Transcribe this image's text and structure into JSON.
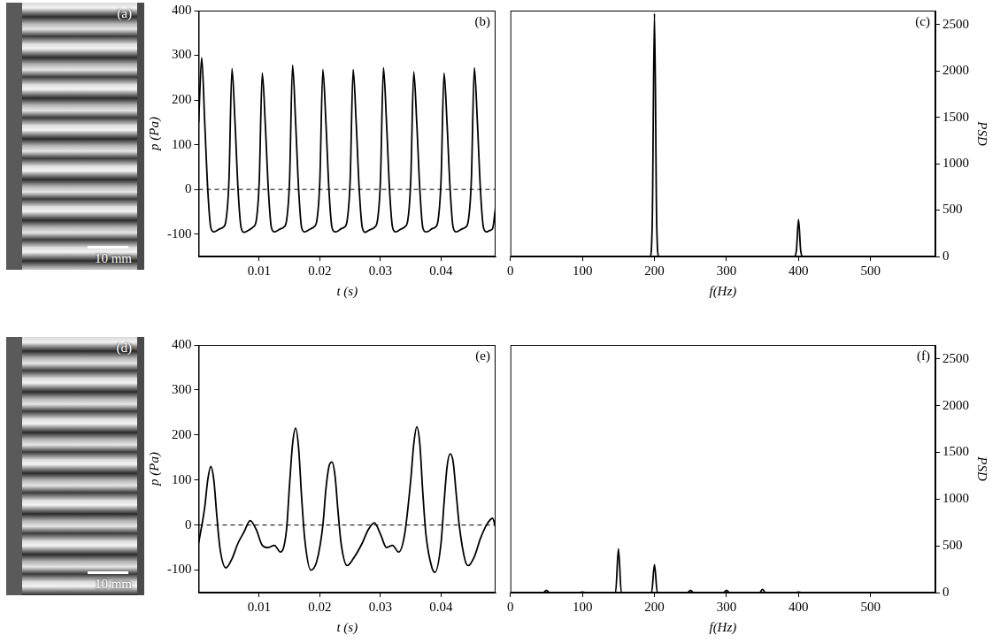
{
  "chart_data": [
    {
      "type": "image",
      "title": "(a)",
      "annotations": [
        "10 mm"
      ]
    },
    {
      "type": "line",
      "title": "(b)",
      "x_label": "t (s)",
      "y_label": "p (Pa)",
      "xlim": [
        0,
        0.049
      ],
      "xticks": [
        0.01,
        0.02,
        0.03,
        0.04
      ],
      "ylim": [
        -150,
        400
      ],
      "yticks": [
        -100,
        0,
        100,
        200,
        300,
        400
      ],
      "grid": false,
      "series": [
        {
          "color": "#000000",
          "line_style": "solid",
          "x": [
            0,
            0.0005,
            0.001,
            0.0015,
            0.002,
            0.0025,
            0.003,
            0.0035,
            0.004,
            0.0045,
            0.005,
            0.0055,
            0.006,
            0.0065,
            0.007,
            0.0075,
            0.008,
            0.0085,
            0.009,
            0.0095,
            0.01,
            0.0105,
            0.011,
            0.0115,
            0.012,
            0.0125,
            0.013,
            0.0135,
            0.014,
            0.0145,
            0.015,
            0.0155,
            0.016,
            0.0165,
            0.017,
            0.0175,
            0.018,
            0.0185,
            0.019,
            0.0195,
            0.02,
            0.0205,
            0.021,
            0.0215,
            0.022,
            0.0225,
            0.023,
            0.0235,
            0.024,
            0.0245,
            0.025,
            0.0255,
            0.026,
            0.0265,
            0.027,
            0.0275,
            0.028,
            0.0285,
            0.029,
            0.0295,
            0.03,
            0.0305,
            0.031,
            0.0315,
            0.032,
            0.0325,
            0.033,
            0.0335,
            0.034,
            0.0345,
            0.035,
            0.0355,
            0.036,
            0.0365,
            0.037,
            0.0375,
            0.038,
            0.0385,
            0.039,
            0.0395,
            0.04,
            0.0405,
            0.041,
            0.0415,
            0.042,
            0.0425,
            0.043,
            0.0435,
            0.044,
            0.0445,
            0.045,
            0.0455,
            0.046,
            0.0465,
            0.047,
            0.0475,
            0.048,
            0.0485,
            0.049
          ],
          "values": [
            150,
            295,
            150,
            0,
            -85,
            -95,
            -92,
            -88,
            -85,
            -70,
            20,
            270,
            150,
            0,
            -85,
            -96,
            -93,
            -89,
            -84,
            -70,
            20,
            260,
            145,
            0,
            -85,
            -95,
            -92,
            -88,
            -85,
            -70,
            20,
            278,
            150,
            0,
            -86,
            -95,
            -92,
            -88,
            -84,
            -70,
            20,
            268,
            150,
            0,
            -85,
            -95,
            -93,
            -88,
            -85,
            -70,
            20,
            268,
            148,
            0,
            -85,
            -96,
            -92,
            -89,
            -85,
            -70,
            20,
            272,
            150,
            0,
            -85,
            -95,
            -92,
            -88,
            -84,
            -70,
            20,
            263,
            147,
            0,
            -86,
            -95,
            -93,
            -88,
            -85,
            -70,
            20,
            260,
            145,
            0,
            -85,
            -95,
            -92,
            -88,
            -85,
            -70,
            20,
            272,
            150,
            0,
            -85,
            -95,
            -92,
            -88,
            -40
          ]
        },
        {
          "color": "#000000",
          "line_style": "dashed",
          "x": [
            0,
            0.049
          ],
          "values": [
            0,
            0
          ]
        }
      ]
    },
    {
      "type": "line",
      "title": "(c)",
      "x_label": "f(Hz)",
      "y_label": "PSD",
      "xlim": [
        0,
        590
      ],
      "xticks": [
        0,
        100,
        200,
        300,
        400,
        500
      ],
      "y2lim": [
        0,
        2650
      ],
      "y2ticks": [
        0,
        500,
        1000,
        1500,
        2000,
        2500
      ],
      "grid": false,
      "series": [
        {
          "color": "#000000",
          "line_style": "solid",
          "axis": "y2",
          "x": [
            0,
            194,
            197,
            200,
            203,
            206,
            394,
            397,
            400,
            403,
            406,
            590
          ],
          "values": [
            0,
            0,
            400,
            2620,
            400,
            0,
            0,
            60,
            400,
            60,
            0,
            0
          ]
        }
      ]
    },
    {
      "type": "image",
      "title": "(d)",
      "annotations": [
        "10 mm"
      ]
    },
    {
      "type": "line",
      "title": "(e)",
      "x_label": "t (s)",
      "y_label": "p (Pa)",
      "xlim": [
        0,
        0.049
      ],
      "xticks": [
        0.01,
        0.02,
        0.03,
        0.04
      ],
      "ylim": [
        -150,
        400
      ],
      "yticks": [
        -100,
        0,
        100,
        200,
        300,
        400
      ],
      "grid": false,
      "series": [
        {
          "color": "#000000",
          "line_style": "solid",
          "x": [
            0,
            0.001,
            0.0015,
            0.002,
            0.0025,
            0.003,
            0.0035,
            0.0045,
            0.0055,
            0.0065,
            0.0075,
            0.0085,
            0.0095,
            0.0105,
            0.0115,
            0.0125,
            0.0135,
            0.0145,
            0.015,
            0.0155,
            0.016,
            0.0165,
            0.017,
            0.0175,
            0.0185,
            0.0195,
            0.0205,
            0.021,
            0.0215,
            0.022,
            0.0225,
            0.023,
            0.0235,
            0.0245,
            0.0255,
            0.027,
            0.028,
            0.029,
            0.03,
            0.031,
            0.032,
            0.033,
            0.034,
            0.035,
            0.0355,
            0.036,
            0.0365,
            0.037,
            0.0375,
            0.0385,
            0.039,
            0.04,
            0.0405,
            0.041,
            0.0415,
            0.042,
            0.0425,
            0.043,
            0.044,
            0.0445,
            0.0455,
            0.0465,
            0.0475,
            0.0485,
            0.049
          ],
          "values": [
            -40,
            40,
            100,
            130,
            100,
            20,
            -50,
            -95,
            -75,
            -40,
            -15,
            10,
            -10,
            -45,
            -50,
            -45,
            -60,
            -10,
            90,
            180,
            215,
            170,
            60,
            -30,
            -100,
            -80,
            0,
            80,
            130,
            140,
            110,
            30,
            -40,
            -90,
            -75,
            -40,
            -10,
            5,
            -20,
            -50,
            -45,
            -60,
            -20,
            100,
            180,
            218,
            180,
            70,
            -20,
            -95,
            -105,
            -40,
            50,
            130,
            158,
            140,
            70,
            0,
            -80,
            -90,
            -70,
            -30,
            0,
            15,
            -5
          ]
        },
        {
          "color": "#000000",
          "line_style": "dashed",
          "x": [
            0,
            0.049
          ],
          "values": [
            0,
            0
          ]
        }
      ]
    },
    {
      "type": "line",
      "title": "(f)",
      "x_label": "f(Hz)",
      "y_label": "PSD",
      "xlim": [
        0,
        590
      ],
      "xticks": [
        0,
        100,
        200,
        300,
        400,
        500
      ],
      "y2lim": [
        0,
        2650
      ],
      "y2ticks": [
        0,
        500,
        1000,
        1500,
        2000,
        2500
      ],
      "grid": false,
      "series": [
        {
          "color": "#000000",
          "line_style": "solid",
          "axis": "y2",
          "x": [
            0,
            46,
            50,
            54,
            96,
            100,
            104,
            146,
            150,
            154,
            196,
            200,
            204,
            246,
            250,
            254,
            296,
            300,
            304,
            346,
            350,
            354,
            396,
            400,
            404,
            590
          ],
          "values": [
            0,
            0,
            25,
            0,
            0,
            5,
            0,
            0,
            470,
            0,
            0,
            300,
            0,
            0,
            25,
            0,
            0,
            25,
            0,
            0,
            35,
            0,
            0,
            5,
            0,
            0
          ]
        }
      ]
    }
  ]
}
